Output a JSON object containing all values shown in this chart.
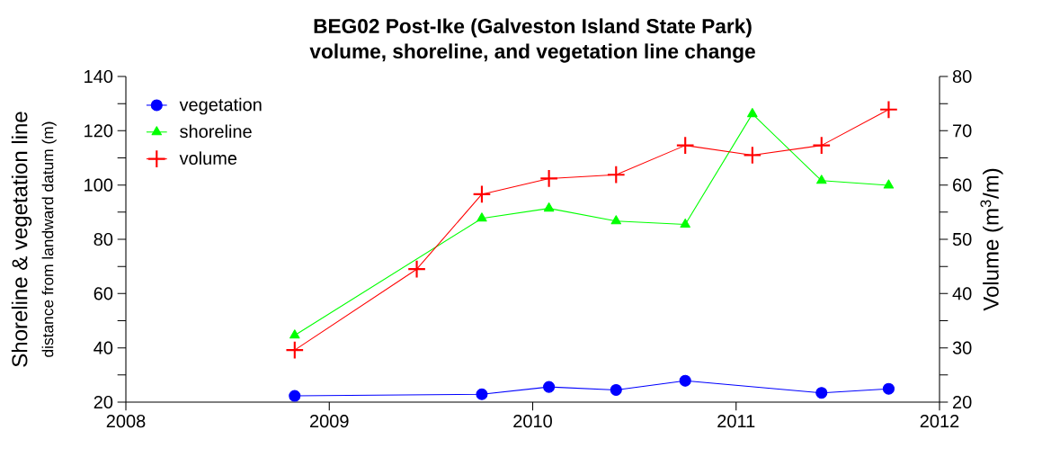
{
  "chart_data": {
    "type": "line",
    "title": "BEG02 Post-Ike (Galveston Island State Park)",
    "subtitle": "volume, shoreline, and vegetation line change",
    "ylabel": "Shoreline & vegetation line",
    "y2label": "Volume (m$^{3}$/m)",
    "annotations": [
      "distance from landward datum (m)"
    ],
    "x": [
      2008.83,
      2009.43,
      2009.75,
      2010.08,
      2010.41,
      2010.75,
      2011.08,
      2011.42,
      2011.75
    ],
    "series": [
      {
        "name": "vegetation",
        "color": "#0000ff",
        "marker": "circle",
        "values": [
          22.3,
          null,
          22.9,
          25.6,
          24.5,
          27.9,
          null,
          23.4,
          24.9
        ]
      },
      {
        "name": "shoreline",
        "color": "#00ff00",
        "marker": "triangle",
        "values": [
          44.6,
          null,
          87.7,
          91.4,
          86.7,
          85.5,
          126.2,
          101.6,
          99.9
        ]
      },
      {
        "name": "volume",
        "color": "#ff0000",
        "marker": "cross",
        "axis": "y2",
        "values": [
          29.6,
          44.5,
          58.3,
          61.2,
          61.9,
          67.3,
          65.5,
          67.3,
          73.9
        ]
      }
    ],
    "xlim": [
      2008,
      2012
    ],
    "xticks": [
      2008,
      2009,
      2010,
      2011,
      2012
    ],
    "ylim": [
      20,
      140
    ],
    "yticks": [
      20,
      {
        "value": 30,
        "label": null
      },
      40,
      {
        "value": 50,
        "label": null
      },
      60,
      {
        "value": 70,
        "label": null
      },
      80,
      {
        "value": 90,
        "label": null
      },
      100,
      {
        "value": 110,
        "label": null
      },
      120,
      {
        "value": 130,
        "label": null
      },
      140
    ],
    "y2lim": [
      20,
      80
    ],
    "y2ticks": [
      20,
      {
        "value": 25,
        "label": null
      },
      30,
      {
        "value": 35,
        "label": null
      },
      40,
      {
        "value": 45,
        "label": null
      },
      50,
      {
        "value": 55,
        "label": null
      },
      60,
      {
        "value": 65,
        "label": null
      },
      70,
      {
        "value": 75,
        "label": null
      },
      80
    ],
    "legend": "top left",
    "grid": false,
    "line_style": "solid"
  }
}
